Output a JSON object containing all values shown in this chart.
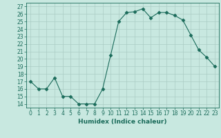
{
  "x": [
    0,
    1,
    2,
    3,
    4,
    5,
    6,
    7,
    8,
    9,
    10,
    11,
    12,
    13,
    14,
    15,
    16,
    17,
    18,
    19,
    20,
    21,
    22,
    23
  ],
  "y": [
    17,
    16,
    16,
    17.5,
    15,
    15,
    14,
    14,
    14,
    16,
    20.5,
    25,
    26.2,
    26.3,
    26.7,
    25.5,
    26.2,
    26.2,
    25.8,
    25.2,
    23.2,
    21.2,
    20.2,
    19
  ],
  "line_color": "#1a6b5a",
  "marker": "D",
  "marker_size": 2.5,
  "bg_color": "#c8e8e0",
  "grid_color": "#aaccc4",
  "xlabel": "Humidex (Indice chaleur)",
  "xlim": [
    -0.5,
    23.5
  ],
  "ylim": [
    13.5,
    27.5
  ],
  "yticks": [
    14,
    15,
    16,
    17,
    18,
    19,
    20,
    21,
    22,
    23,
    24,
    25,
    26,
    27
  ],
  "xticks": [
    0,
    1,
    2,
    3,
    4,
    5,
    6,
    7,
    8,
    9,
    10,
    11,
    12,
    13,
    14,
    15,
    16,
    17,
    18,
    19,
    20,
    21,
    22,
    23
  ],
  "label_fontsize": 6.5,
  "tick_fontsize": 5.5
}
